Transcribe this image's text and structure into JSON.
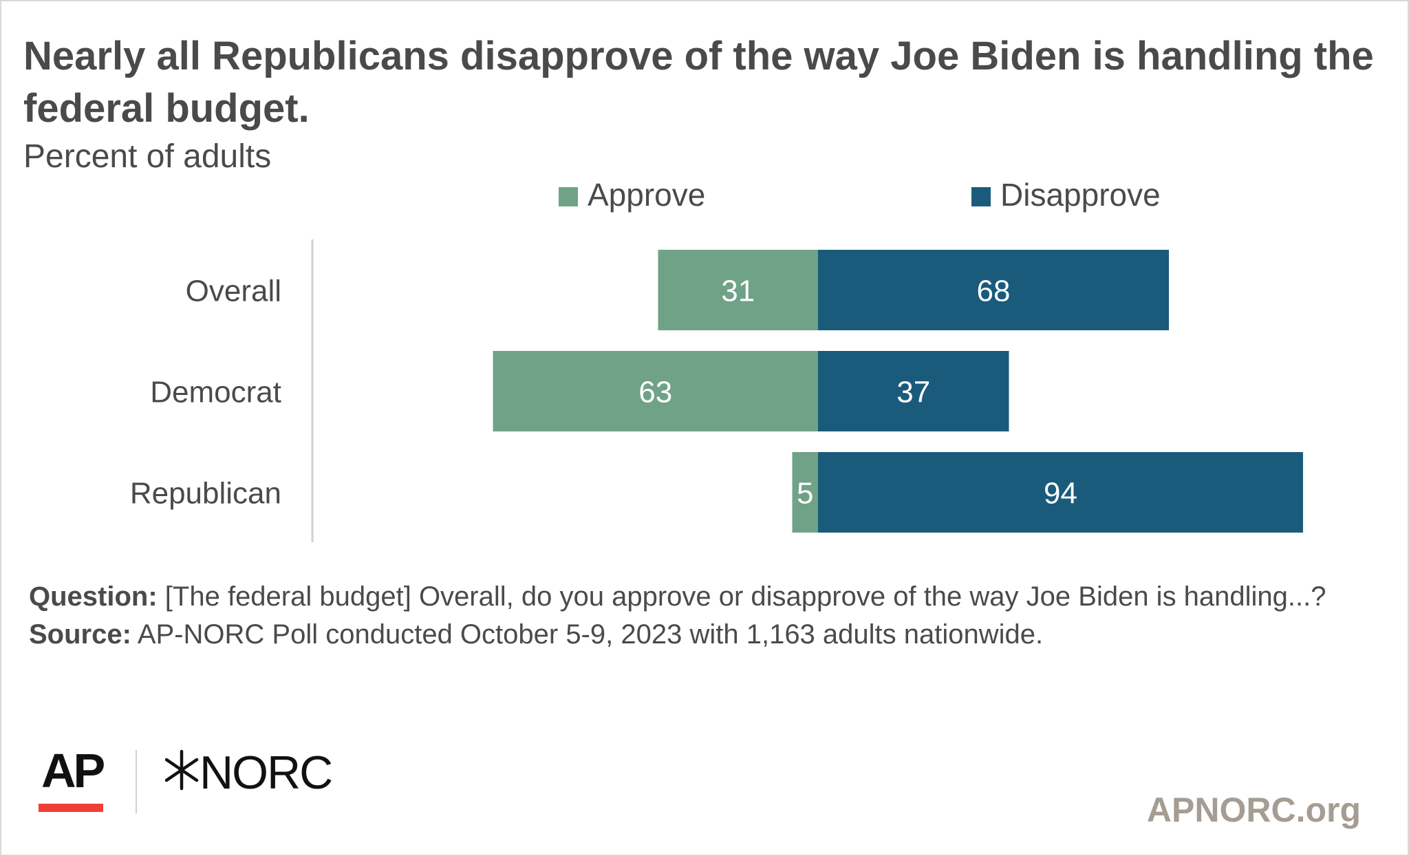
{
  "title": "Nearly all Republicans disapprove of the way Joe Biden is handling the federal budget.",
  "subtitle": "Percent of adults",
  "colors": {
    "approve": "#6fa287",
    "disapprove": "#1a5b7c",
    "text": "#4a4a4a",
    "axis": "#d0d0d0",
    "ap_red": "#ef3e36",
    "url": "#a59d92"
  },
  "chart_data": {
    "type": "bar",
    "orientation": "horizontal",
    "stacked": "diverging",
    "categories": [
      "Overall",
      "Democrat",
      "Republican"
    ],
    "series": [
      {
        "name": "Approve",
        "values": [
          31,
          63,
          5
        ],
        "color": "#6fa287"
      },
      {
        "name": "Disapprove",
        "values": [
          68,
          37,
          94
        ],
        "color": "#1a5b7c"
      }
    ],
    "legend_position": "top",
    "grid": false
  },
  "footnote": {
    "question_label": "Question:",
    "question_text": "[The federal budget] Overall, do you approve or disapprove of the way Joe Biden is handling...?",
    "source_label": "Source:",
    "source_text": "AP-NORC Poll conducted October 5-9, 2023 with 1,163 adults nationwide."
  },
  "logos": {
    "ap": "AP",
    "norc": "NORC",
    "norc_mark_icon": "norc-star-icon"
  },
  "site_url": "APNORC.org"
}
